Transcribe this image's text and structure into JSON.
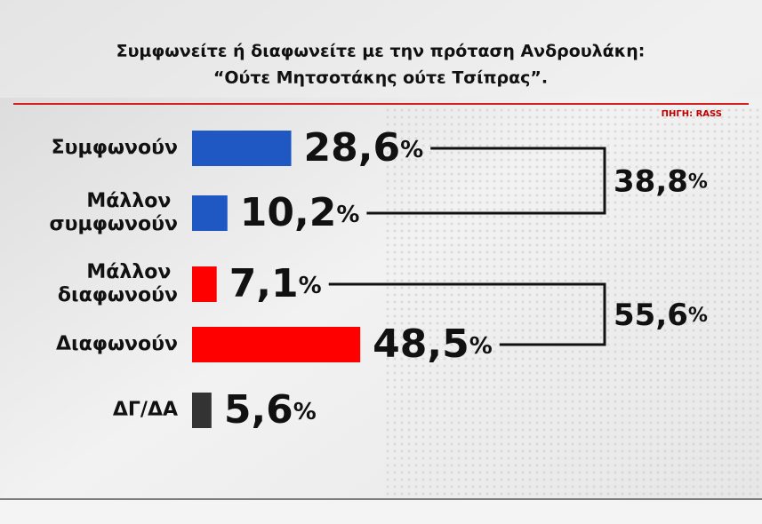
{
  "chart_data": {
    "type": "bar",
    "orientation": "horizontal",
    "title": "Συμφωνείτε ή διαφωνείτε με την πρόταση Ανδρουλάκη:",
    "subtitle": "“Ούτε Μητσοτάκης ούτε Τσίπρας”.",
    "source": "ΠΗΓΗ: RASS",
    "categories": [
      "Συμφωνούν",
      "Μάλλον συμφωνούν",
      "Μάλλον διαφωνούν",
      "Διαφωνούν",
      "ΔΓ/ΔΑ"
    ],
    "values": [
      28.6,
      10.2,
      7.1,
      48.5,
      5.6
    ],
    "value_labels": [
      "28,6%",
      "10,2%",
      "7,1%",
      "48,5%",
      "5,6%"
    ],
    "colors": [
      "#1f57c3",
      "#1f57c3",
      "#ff0000",
      "#ff0000",
      "#333333"
    ],
    "groups": [
      {
        "value": 38.8,
        "label": "38,8%",
        "categories": [
          "Συμφωνούν",
          "Μάλλον συμφωνούν"
        ]
      },
      {
        "value": 55.6,
        "label": "55,6%",
        "categories": [
          "Μάλλον διαφωνούν",
          "Διαφωνούν"
        ]
      }
    ]
  }
}
